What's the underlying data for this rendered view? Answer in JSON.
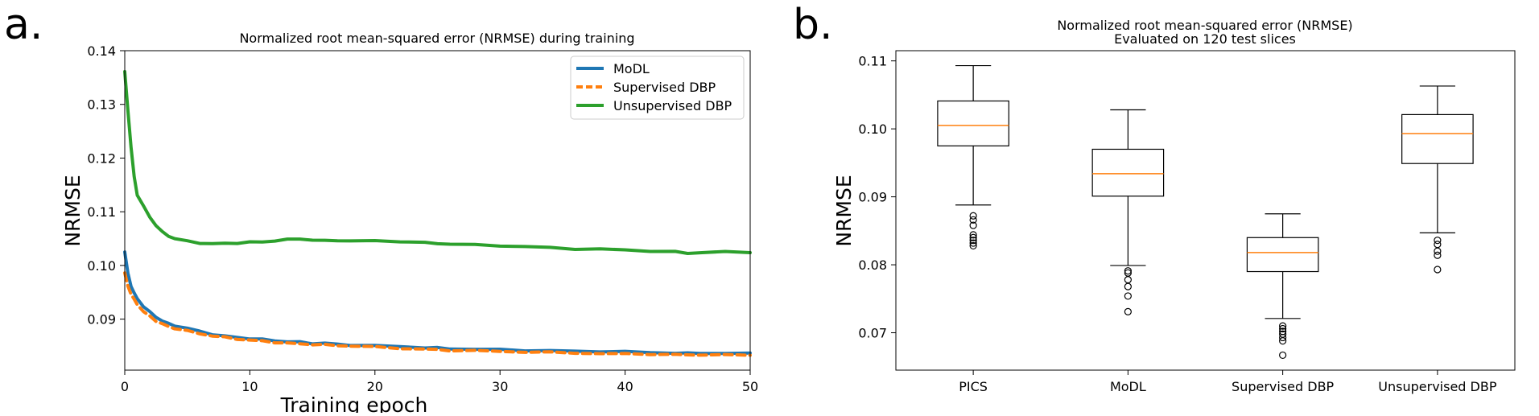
{
  "figure": {
    "panel_a_label": "a.",
    "panel_b_label": "b."
  },
  "chart_data": [
    {
      "type": "line",
      "title": "Normalized root mean-squared error (NRMSE) during training",
      "xlabel": "Training epoch",
      "ylabel": "NRMSE",
      "xlim": [
        0,
        50
      ],
      "ylim": [
        0.0805,
        0.14
      ],
      "xticks": [
        0,
        10,
        20,
        30,
        40,
        50
      ],
      "yticks": [
        0.09,
        0.1,
        0.11,
        0.12,
        0.13,
        0.14
      ],
      "ytick_labels": [
        "0.09",
        "0.10",
        "0.11",
        "0.12",
        "0.13",
        "0.14"
      ],
      "legend_position": "top-right",
      "series": [
        {
          "name": "MoDL",
          "color": "#1f77b4",
          "dash": "solid",
          "x": [
            0,
            0.25,
            0.5,
            0.75,
            1,
            1.5,
            2,
            2.5,
            3,
            3.5,
            4,
            5,
            6,
            7,
            8,
            9,
            10,
            11,
            12,
            13,
            14,
            15,
            16,
            17,
            18,
            20,
            22,
            24,
            25,
            26,
            28,
            30,
            32,
            34,
            36,
            38,
            40,
            42,
            44,
            45,
            46,
            48,
            50
          ],
          "y": [
            0.1025,
            0.0985,
            0.0962,
            0.0948,
            0.0938,
            0.0924,
            0.0913,
            0.0904,
            0.0897,
            0.0891,
            0.0888,
            0.0883,
            0.0877,
            0.0872,
            0.0868,
            0.0866,
            0.0864,
            0.0862,
            0.086,
            0.0858,
            0.0857,
            0.0855,
            0.0855,
            0.0853,
            0.0852,
            0.085,
            0.0849,
            0.0847,
            0.0846,
            0.0845,
            0.0844,
            0.0843,
            0.0842,
            0.0841,
            0.084,
            0.084,
            0.0839,
            0.0838,
            0.0837,
            0.0836,
            0.0837,
            0.0836,
            0.0836
          ]
        },
        {
          "name": "Supervised DBP",
          "color": "#ff7f0e",
          "dash": "dashed",
          "x": [
            0,
            0.25,
            0.5,
            0.75,
            1,
            1.5,
            2,
            2.5,
            3,
            3.5,
            4,
            5,
            6,
            7,
            8,
            9,
            10,
            11,
            12,
            13,
            14,
            15,
            16,
            17,
            18,
            20,
            22,
            24,
            25,
            26,
            28,
            30,
            32,
            34,
            36,
            38,
            40,
            42,
            44,
            45,
            46,
            48,
            50
          ],
          "y": [
            0.0985,
            0.0962,
            0.0947,
            0.0936,
            0.0928,
            0.0914,
            0.0905,
            0.0897,
            0.0891,
            0.0886,
            0.0883,
            0.0878,
            0.0873,
            0.0869,
            0.0866,
            0.0863,
            0.0861,
            0.0859,
            0.0857,
            0.0855,
            0.0854,
            0.0853,
            0.0852,
            0.0851,
            0.085,
            0.0848,
            0.0846,
            0.0844,
            0.0843,
            0.0842,
            0.0841,
            0.084,
            0.0839,
            0.0838,
            0.0837,
            0.0836,
            0.0835,
            0.0835,
            0.0834,
            0.0833,
            0.0834,
            0.0833,
            0.0833
          ]
        },
        {
          "name": "Unsupervised DBP",
          "color": "#2ca02c",
          "dash": "solid",
          "x": [
            0,
            0.25,
            0.5,
            0.75,
            1,
            1.5,
            2,
            2.5,
            3,
            3.5,
            4,
            5,
            6,
            7,
            8,
            9,
            10,
            11,
            12,
            13,
            14,
            15,
            16,
            17,
            18,
            20,
            22,
            24,
            25,
            26,
            28,
            30,
            32,
            34,
            36,
            38,
            40,
            42,
            44,
            45,
            46,
            48,
            50
          ],
          "y": [
            0.136,
            0.129,
            0.122,
            0.1165,
            0.1132,
            0.111,
            0.109,
            0.1075,
            0.1062,
            0.1055,
            0.105,
            0.1045,
            0.1042,
            0.104,
            0.1041,
            0.1042,
            0.1043,
            0.1044,
            0.1046,
            0.1048,
            0.105,
            0.1047,
            0.1046,
            0.1047,
            0.1045,
            0.1046,
            0.1045,
            0.1042,
            0.1041,
            0.104,
            0.1038,
            0.1037,
            0.1035,
            0.1033,
            0.1031,
            0.103,
            0.1029,
            0.1027,
            0.1025,
            0.1023,
            0.1024,
            0.1025,
            0.1025
          ]
        }
      ]
    },
    {
      "type": "box",
      "title": "Normalized root mean-squared error (NRMSE)",
      "subtitle": "Evaluated on 120 test slices",
      "xlabel": "",
      "ylabel": "NRMSE",
      "ylim": [
        0.0645,
        0.1115
      ],
      "yticks": [
        0.07,
        0.08,
        0.09,
        0.1,
        0.11
      ],
      "ytick_labels": [
        "0.07",
        "0.08",
        "0.09",
        "0.10",
        "0.11"
      ],
      "median_color": "#ff7f0e",
      "categories": [
        "PICS",
        "MoDL",
        "Supervised DBP",
        "Unsupervised DBP"
      ],
      "boxes": [
        {
          "name": "PICS",
          "whisker_low": 0.0888,
          "q1": 0.0975,
          "median": 0.1005,
          "q3": 0.1041,
          "whisker_high": 0.1093,
          "outliers": [
            0.0828,
            0.0832,
            0.0836,
            0.084,
            0.0844,
            0.0858,
            0.0866,
            0.0872
          ]
        },
        {
          "name": "MoDL",
          "whisker_low": 0.0799,
          "q1": 0.0901,
          "median": 0.0934,
          "q3": 0.097,
          "whisker_high": 0.1028,
          "outliers": [
            0.0731,
            0.0754,
            0.0768,
            0.0778,
            0.0788,
            0.0791
          ]
        },
        {
          "name": "Supervised DBP",
          "whisker_low": 0.0721,
          "q1": 0.079,
          "median": 0.0818,
          "q3": 0.084,
          "whisker_high": 0.0875,
          "outliers": [
            0.0667,
            0.0688,
            0.0693,
            0.0698,
            0.0702,
            0.0706,
            0.071
          ]
        },
        {
          "name": "Unsupervised DBP",
          "whisker_low": 0.0847,
          "q1": 0.0949,
          "median": 0.0993,
          "q3": 0.1021,
          "whisker_high": 0.1063,
          "outliers": [
            0.0793,
            0.0814,
            0.082,
            0.083,
            0.0836
          ]
        }
      ]
    }
  ]
}
